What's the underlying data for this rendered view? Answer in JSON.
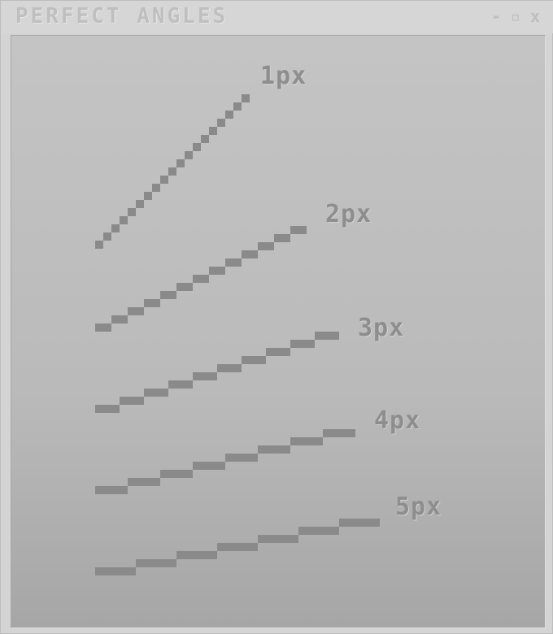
{
  "window": {
    "title": "PERFECT ANGLES",
    "controls": {
      "minimize": "-",
      "maximize": "▫",
      "close": "x"
    }
  },
  "lines": [
    {
      "label": "1px",
      "thickness": 1
    },
    {
      "label": "2px",
      "thickness": 2
    },
    {
      "label": "3px",
      "thickness": 3
    },
    {
      "label": "4px",
      "thickness": 4
    },
    {
      "label": "5px",
      "thickness": 5
    }
  ],
  "colors": {
    "line": "#8a8a8a",
    "label": "#8e8e8e",
    "title": "#bfbfbf"
  }
}
